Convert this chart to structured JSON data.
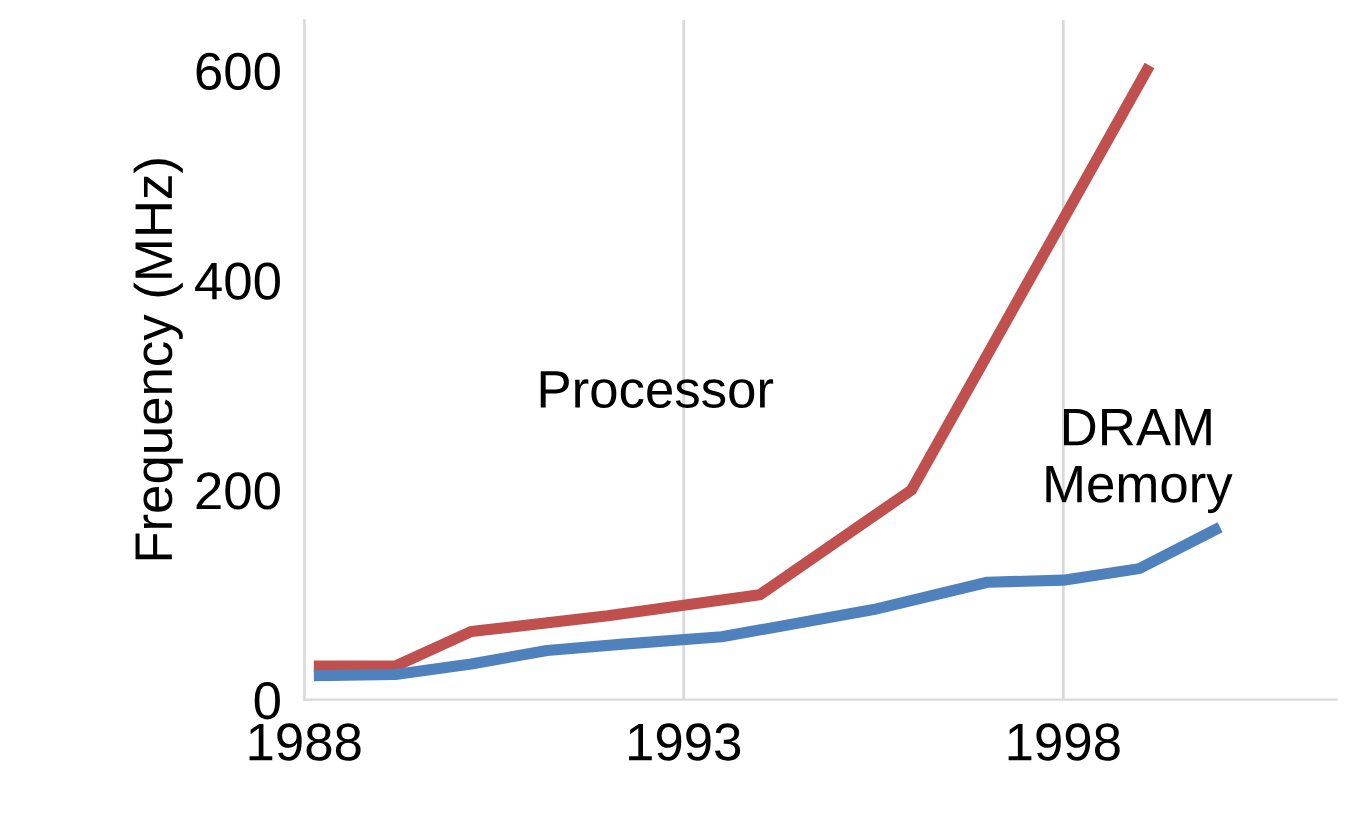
{
  "chart_data": {
    "type": "line",
    "ylabel": "Frequency (MHz)",
    "xlim": [
      1988,
      2001.6
    ],
    "ylim": [
      0,
      648
    ],
    "xticks": [
      1988,
      1993,
      1998
    ],
    "yticks": [
      0,
      200,
      400,
      600
    ],
    "grid": "x",
    "legend": false,
    "marker": "none",
    "line_style": "solid",
    "series": [
      {
        "name": "Processor",
        "color": "#c0504d",
        "x": [
          1988.2,
          1989.2,
          1990.2,
          1992,
          1993,
          1994,
          1996,
          1999.1
        ],
        "values": [
          32,
          32,
          65,
          80,
          90,
          100,
          200,
          600
        ]
      },
      {
        "name": "DRAM Memory",
        "color": "#4f81bd",
        "x": [
          1988.2,
          1989.2,
          1990.2,
          1991.2,
          1992.2,
          1993.5,
          1995.5,
          1997,
          1998,
          1999,
          2000
        ],
        "values": [
          23,
          24,
          34,
          47,
          53,
          60,
          86,
          112,
          114,
          125,
          162
        ]
      }
    ]
  }
}
